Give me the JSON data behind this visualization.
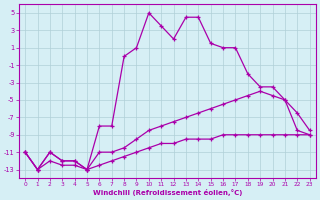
{
  "xlabel": "Windchill (Refroidissement éolien,°C)",
  "background_color": "#d6eff5",
  "grid_color": "#b0d0d8",
  "line_color": "#aa00aa",
  "x_ticks": [
    0,
    1,
    2,
    3,
    4,
    5,
    6,
    7,
    8,
    9,
    10,
    11,
    12,
    13,
    14,
    15,
    16,
    17,
    18,
    19,
    20,
    21,
    22,
    23
  ],
  "ylim": [
    -14,
    6
  ],
  "yticks": [
    -13,
    -11,
    -9,
    -7,
    -5,
    -3,
    -1,
    1,
    3,
    5
  ],
  "y_peak": [
    -11,
    -13,
    -11,
    -12,
    -12,
    -13,
    -8,
    -8,
    0,
    1,
    5,
    3.5,
    2,
    4.5,
    4.5,
    1.5,
    1,
    1,
    -2,
    -3.5,
    -3.5,
    -5,
    -8.5,
    -9
  ],
  "y_mid": [
    -11,
    -13,
    -11,
    -12,
    -12,
    -13,
    -11,
    -11,
    -10.5,
    -9.5,
    -8.5,
    -8,
    -7.5,
    -7,
    -6.5,
    -6,
    -5.5,
    -5,
    -4.5,
    -4,
    -4.5,
    -5,
    -6.5,
    -8.5
  ],
  "y_bottom": [
    -11,
    -13,
    -12,
    -12.5,
    -12.5,
    -13,
    -12.5,
    -12,
    -11.5,
    -11,
    -10.5,
    -10,
    -10,
    -9.5,
    -9.5,
    -9.5,
    -9,
    -9,
    -9,
    -9,
    -9,
    -9,
    -9,
    -9
  ]
}
